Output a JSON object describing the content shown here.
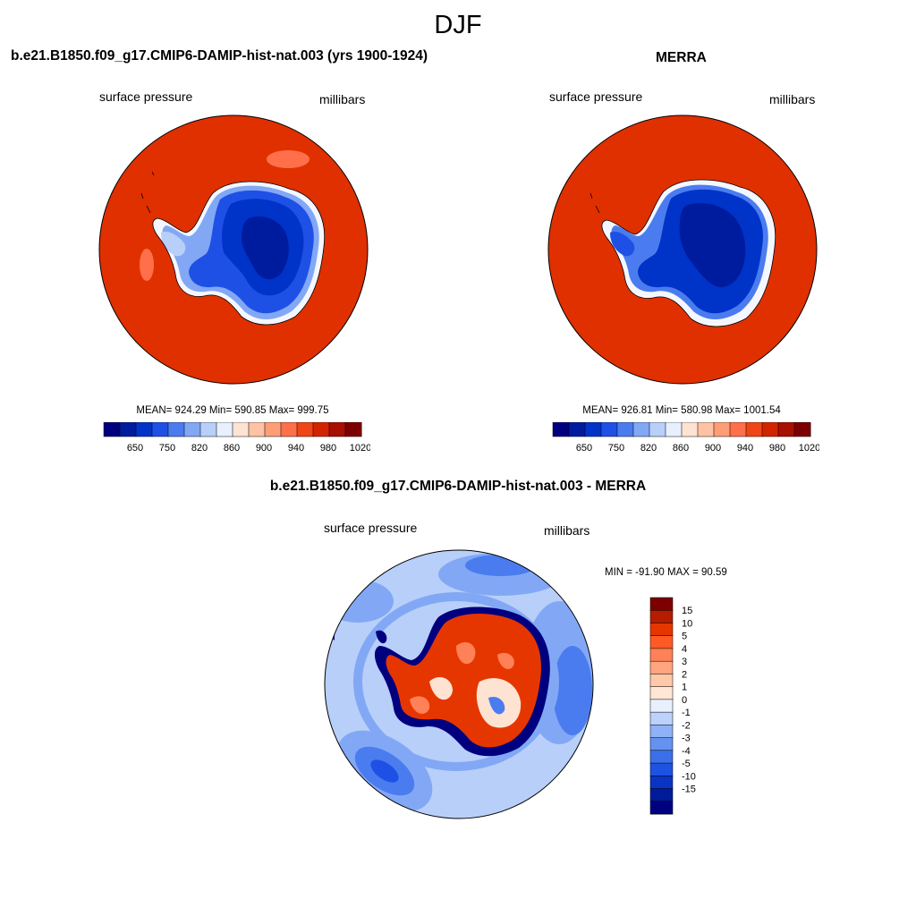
{
  "title": "DJF",
  "panels": {
    "model": {
      "title": "b.e21.B1850.f09_g17.CMIP6-DAMIP-hist-nat.003 (yrs 1900-1924)",
      "left_label": "surface pressure",
      "right_label": "millibars",
      "stats": "MEAN= 924.29  Min= 590.85  Max= 999.75"
    },
    "obs": {
      "title": "MERRA",
      "left_label": "surface pressure",
      "right_label": "millibars",
      "stats": "MEAN= 926.81  Min= 580.98  Max= 1001.54"
    },
    "diff": {
      "title": "b.e21.B1850.f09_g17.CMIP6-DAMIP-hist-nat.003 - MERRA",
      "left_label": "surface pressure",
      "right_label": "millibars",
      "stats": "MIN = -91.90 MAX =  90.59"
    }
  },
  "colorbar_abs": {
    "colors": [
      "#00007f",
      "#001c9e",
      "#0033c8",
      "#1f50e6",
      "#4a7cf0",
      "#82a8f5",
      "#b8cffa",
      "#e8f0ff",
      "#ffe3d2",
      "#ffc2a4",
      "#ff9d77",
      "#ff704a",
      "#f04516",
      "#d32400",
      "#a81000",
      "#7d0000"
    ],
    "tick_labels": [
      "650",
      "750",
      "820",
      "860",
      "900",
      "940",
      "980",
      "1020"
    ]
  },
  "colorbar_diff": {
    "colors": [
      "#7d0000",
      "#b51c00",
      "#e63600",
      "#ff5a26",
      "#ff8157",
      "#ffa580",
      "#ffc8a9",
      "#ffe7d6",
      "#e8f0ff",
      "#bcd2fb",
      "#8fb2f6",
      "#6592f0",
      "#3c70ea",
      "#1d52e2",
      "#0a34c4",
      "#001b9a",
      "#000080"
    ],
    "tick_labels": [
      "15",
      "10",
      "5",
      "4",
      "3",
      "2",
      "1",
      "0",
      "-1",
      "-2",
      "-3",
      "-4",
      "-5",
      "-10",
      "-15"
    ]
  },
  "map_colors": {
    "ocean_abs": "#e03000",
    "ocean_abs_light": "#ff704a",
    "plateau_deep": "#001c9e",
    "plateau_mid": "#0033c8",
    "slope": "#4a7cf0",
    "coast_light": "#b8cffa",
    "coast_white": "#f4f7ff",
    "diff_bg": "#b8cffa",
    "diff_mid": "#82a8f5",
    "diff_dark": "#4a7cf0",
    "diff_deep": "#1f50e6",
    "diff_red": "#e63600",
    "diff_orange": "#ff8157",
    "diff_light": "#ffe3d2",
    "diff_navy": "#00007f"
  }
}
